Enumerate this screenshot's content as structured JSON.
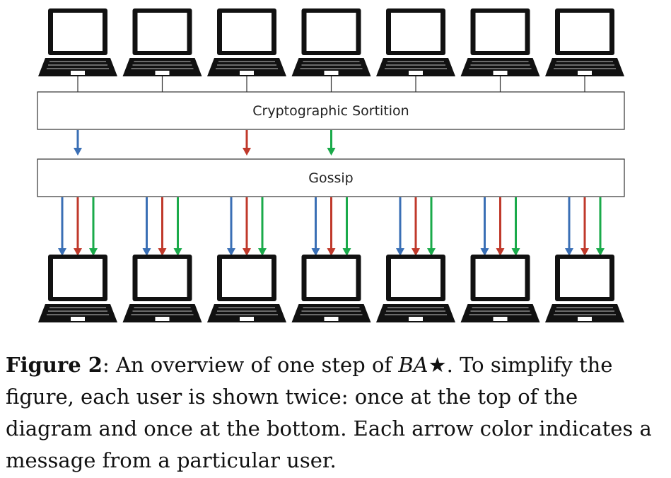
{
  "diagram": {
    "sortition_label": "Cryptographic Sortition",
    "gossip_label": "Gossip",
    "user_count": 7,
    "senders": [
      {
        "user_index": 0,
        "color": "#3a6fb5"
      },
      {
        "user_index": 2,
        "color": "#c0392b"
      },
      {
        "user_index": 3,
        "color": "#1aaa4a"
      }
    ],
    "laptop_icon": "laptop-icon"
  },
  "caption": {
    "figure_number": "Figure 2",
    "text_before": ": An overview of one step of ",
    "ba_name": "BA",
    "star": "★",
    "text_after": ". To simplify the figure, each user is shown twice: once at the top of the diagram and once at the bottom. Each arrow color indicates a message from a particular user."
  }
}
